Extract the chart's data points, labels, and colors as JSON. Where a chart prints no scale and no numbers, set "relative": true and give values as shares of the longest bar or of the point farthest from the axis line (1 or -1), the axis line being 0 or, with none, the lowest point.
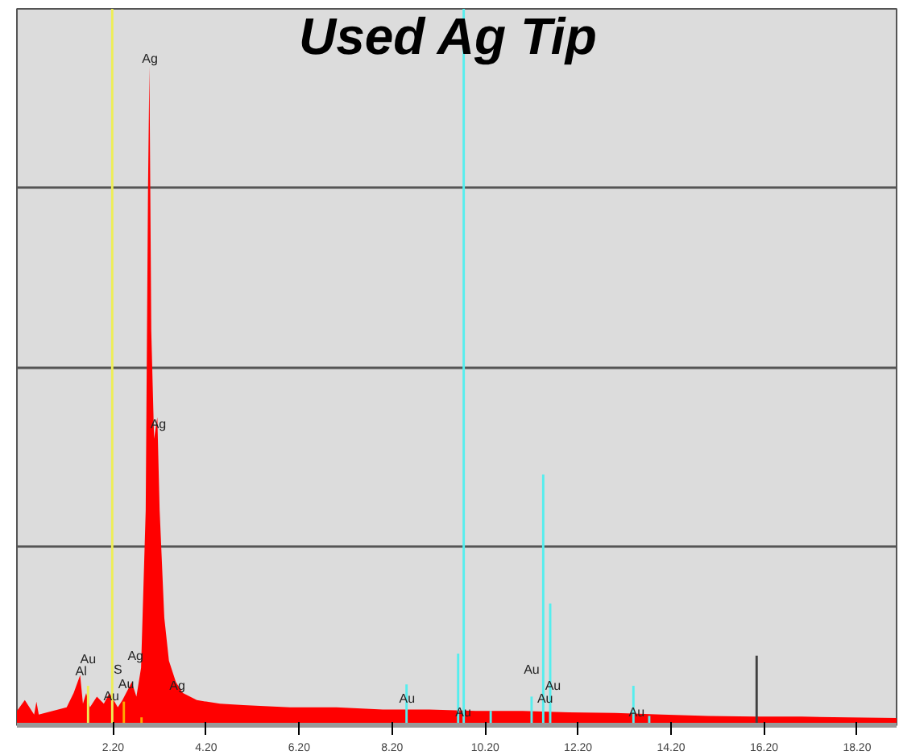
{
  "chart_data": {
    "type": "area",
    "title": "Used Ag Tip",
    "relative": true,
    "grid": "y",
    "xlim": [
      0.13,
      19.05
    ],
    "xticks": [
      {
        "value": 2.2,
        "label": "2.20"
      },
      {
        "value": 4.2,
        "label": "4.20"
      },
      {
        "value": 6.2,
        "label": "6.20"
      },
      {
        "value": 8.2,
        "label": "8.20"
      },
      {
        "value": 10.2,
        "label": "10.20"
      },
      {
        "value": 12.2,
        "label": "12.20"
      },
      {
        "value": 14.2,
        "label": "14.20"
      },
      {
        "value": 16.2,
        "label": "16.20"
      },
      {
        "value": 18.2,
        "label": "18.20"
      }
    ],
    "tick_labels": "x",
    "series": [
      {
        "color": "#ff0000",
        "x": [
          0.13,
          0.3,
          0.5,
          0.55,
          0.6,
          0.9,
          1.2,
          1.35,
          1.49,
          1.55,
          1.62,
          1.7,
          1.85,
          2.0,
          2.12,
          2.3,
          2.4,
          2.6,
          2.7,
          2.8,
          2.9,
          2.95,
          2.98,
          3.02,
          3.08,
          3.15,
          3.2,
          3.3,
          3.4,
          3.55,
          3.7,
          4.0,
          4.5,
          5.0,
          6.0,
          7.0,
          8.0,
          9.0,
          10.0,
          11.0,
          12.0,
          13.0,
          14.0,
          15.0,
          16.0,
          17.0,
          18.0,
          19.05
        ],
        "values": [
          0.02,
          0.035,
          0.015,
          0.033,
          0.015,
          0.02,
          0.025,
          0.045,
          0.07,
          0.03,
          0.045,
          0.025,
          0.04,
          0.03,
          0.045,
          0.025,
          0.035,
          0.06,
          0.04,
          0.08,
          0.3,
          0.75,
          0.92,
          0.55,
          0.4,
          0.43,
          0.3,
          0.15,
          0.09,
          0.06,
          0.045,
          0.035,
          0.03,
          0.028,
          0.025,
          0.025,
          0.022,
          0.022,
          0.02,
          0.02,
          0.018,
          0.017,
          0.015,
          0.013,
          0.012,
          0.012,
          0.011,
          0.01
        ]
      },
      {
        "type": "bar",
        "color": "#55eeee",
        "x": [
          8.51,
          9.62,
          9.74,
          10.32,
          11.2,
          11.45,
          11.6,
          13.39,
          13.73
        ],
        "values": [
          0.057,
          0.1,
          1.0,
          0.02,
          0.04,
          0.35,
          0.17,
          0.055,
          0.013
        ]
      },
      {
        "type": "bar",
        "color": "#eeee55",
        "x": [
          1.66,
          2.18
        ],
        "values": [
          0.055,
          1.0
        ]
      },
      {
        "type": "bar",
        "color": "#ffaa00",
        "x": [
          2.43,
          2.81
        ],
        "values": [
          0.033,
          0.011
        ]
      },
      {
        "type": "bar",
        "color": "#404040",
        "x": [
          16.04
        ],
        "values": [
          0.097
        ]
      }
    ],
    "annotations": [
      {
        "text": "Ag",
        "x": 2.99,
        "y": 0.93
      },
      {
        "text": "Ag",
        "x": 3.17,
        "y": 0.42
      },
      {
        "text": "Au",
        "x": 1.66,
        "y": 0.055
      },
      {
        "text": "Al",
        "x": 1.51,
        "y": 0.075
      },
      {
        "text": "S",
        "x": 2.3,
        "y": 0.077
      },
      {
        "text": "Au",
        "x": 2.48,
        "y": 0.057
      },
      {
        "text": "Ag",
        "x": 2.68,
        "y": 0.097
      },
      {
        "text": "Au",
        "x": 2.16,
        "y": 0.04
      },
      {
        "text": "Ag",
        "x": 3.58,
        "y": 0.055
      },
      {
        "text": "Au",
        "x": 8.52,
        "y": 0.037
      },
      {
        "text": "Au",
        "x": 9.73,
        "y": 0.018
      },
      {
        "text": "Au",
        "x": 11.2,
        "y": 0.04
      },
      {
        "text": "Au",
        "x": 11.66,
        "y": 0.055
      },
      {
        "text": "Au",
        "x": 11.49,
        "y": 0.037
      },
      {
        "text": "Au",
        "x": 13.46,
        "y": 0.018
      }
    ]
  }
}
